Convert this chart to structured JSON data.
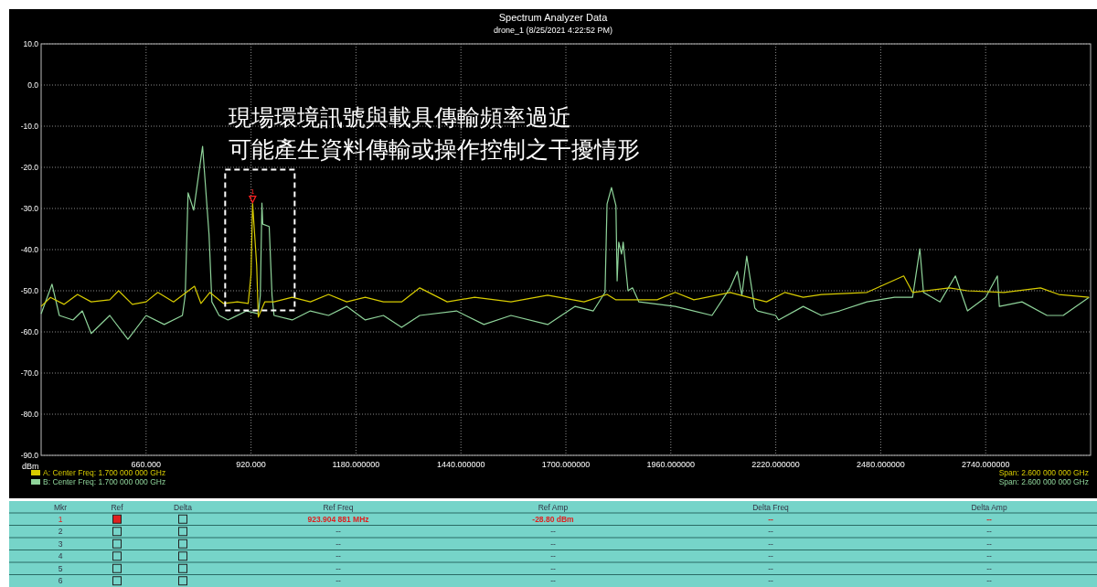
{
  "chart_data": {
    "type": "line",
    "title": "Spectrum Analyzer Data",
    "subtitle": "drone_1 (8/25/2021 4:22:52 PM)",
    "ylabel": "dBm",
    "xlim": [
      400,
      3000
    ],
    "ylim": [
      -90,
      10
    ],
    "xticks": [
      {
        "value": 660,
        "label": "660.000"
      },
      {
        "value": 920,
        "label": "920.000"
      },
      {
        "value": 1180,
        "label": "1180.000000"
      },
      {
        "value": 1440,
        "label": "1440.000000"
      },
      {
        "value": 1700,
        "label": "1700.000000"
      },
      {
        "value": 1960,
        "label": "1960.000000"
      },
      {
        "value": 2220,
        "label": "2220.000000"
      },
      {
        "value": 2480,
        "label": "2480.000000"
      },
      {
        "value": 2740,
        "label": "2740.000000"
      }
    ],
    "yticks": [
      {
        "value": 10,
        "label": "10.0"
      },
      {
        "value": 0,
        "label": "0.0"
      },
      {
        "value": -10,
        "label": "-10.0"
      },
      {
        "value": -20,
        "label": "-20.0"
      },
      {
        "value": -30,
        "label": "-30.0"
      },
      {
        "value": -40,
        "label": "-40.0"
      },
      {
        "value": -50,
        "label": "-50.0"
      },
      {
        "value": -60,
        "label": "-60.0"
      },
      {
        "value": -70,
        "label": "-70.0"
      },
      {
        "value": -80,
        "label": "-80.0"
      },
      {
        "value": -90,
        "label": "-90.0"
      }
    ],
    "grid": true,
    "legend": "bottom left",
    "marker": "none",
    "line_style": "solid",
    "series": [
      {
        "name": "B: Center Freq: 1.700 000 000 GHz",
        "color": "#8fd49a",
        "x": [
          400,
          427,
          445,
          479,
          502,
          524,
          570,
          615,
          660,
          705,
          750,
          757,
          764,
          778,
          800,
          816,
          823,
          841,
          863,
          909,
          938,
          943,
          947,
          949,
          965,
          972,
          977,
          1022,
          1067,
          1112,
          1157,
          1203,
          1248,
          1293,
          1338,
          1429,
          1497,
          1564,
          1655,
          1723,
          1768,
          1797,
          1802,
          1813,
          1824,
          1827,
          1831,
          1838,
          1842,
          1854,
          1865,
          1881,
          1971,
          2062,
          2107,
          2125,
          2136,
          2148,
          2168,
          2175,
          2220,
          2227,
          2288,
          2333,
          2378,
          2446,
          2514,
          2559,
          2577,
          2586,
          2627,
          2665,
          2695,
          2740,
          2769,
          2774,
          2830,
          2892,
          2932,
          2996
        ],
        "values": [
          -55.6,
          -48.4,
          -56,
          -57.1,
          -54.9,
          -60.4,
          -56,
          -61.8,
          -56,
          -58.2,
          -56,
          -51.1,
          -26.2,
          -30.4,
          -14.9,
          -36.4,
          -52.7,
          -56,
          -57.1,
          -54.9,
          -55.6,
          -51.1,
          -28.7,
          -33.8,
          -34.4,
          -51.1,
          -56,
          -57.1,
          -54.9,
          -56,
          -53.8,
          -57.1,
          -56,
          -58.9,
          -56,
          -54.9,
          -58.2,
          -56,
          -58.2,
          -53.8,
          -54.9,
          -50.4,
          -28.9,
          -24.9,
          -29.3,
          -47.6,
          -38.2,
          -41.1,
          -38.2,
          -50,
          -49.3,
          -52.7,
          -53.8,
          -56,
          -49.3,
          -45.3,
          -51.1,
          -41.6,
          -54.2,
          -54.9,
          -56,
          -57.1,
          -53.8,
          -56,
          -54.9,
          -52.7,
          -51.6,
          -51.6,
          -39.8,
          -50.4,
          -52.7,
          -46.4,
          -54.9,
          -51.6,
          -46.4,
          -53.8,
          -52.7,
          -56,
          -56,
          -51.6
        ]
      },
      {
        "name": "A: Center Freq: 1.700 000 000 GHz",
        "color": "#d8cc00",
        "x": [
          400,
          423,
          457,
          490,
          524,
          570,
          592,
          626,
          660,
          689,
          728,
          780,
          796,
          818,
          852,
          886,
          913,
          920,
          923.9,
          934,
          938,
          954,
          977,
          1022,
          1067,
          1112,
          1157,
          1203,
          1248,
          1293,
          1338,
          1406,
          1474,
          1564,
          1655,
          1745,
          1802,
          1824,
          1881,
          1926,
          1971,
          2017,
          2107,
          2152,
          2197,
          2243,
          2288,
          2333,
          2446,
          2537,
          2559,
          2650,
          2695,
          2785,
          2876,
          2921,
          2996
        ],
        "values": [
          -53.8,
          -51.6,
          -53.3,
          -50.9,
          -52.7,
          -52.2,
          -50,
          -53.3,
          -52.7,
          -50.4,
          -52.7,
          -48.9,
          -53.1,
          -50.4,
          -53.1,
          -52.7,
          -53.1,
          -46,
          -28.8,
          -43.8,
          -56.4,
          -52.7,
          -52.7,
          -51.6,
          -52.7,
          -50.9,
          -52.7,
          -51.6,
          -52.7,
          -52.7,
          -49.3,
          -52.7,
          -51.6,
          -52.7,
          -51.1,
          -52.7,
          -50.9,
          -52.2,
          -52.2,
          -52.2,
          -50.4,
          -52.2,
          -50.4,
          -51.6,
          -52.7,
          -50.4,
          -51.6,
          -50.9,
          -50.4,
          -46.4,
          -50.4,
          -49.3,
          -50,
          -50.4,
          -49.3,
          -50.9,
          -51.6
        ]
      }
    ],
    "annotations": [
      "現場環境訊號與載具傳輸頻率過近",
      "可能產生資料傳輸或操作控制之干擾情形",
      {
        "text": "1",
        "x": 923.904881,
        "y": -28.8
      },
      "Span: 2.600 000 000 GHz",
      "Span: 2.600 000 000 GHz",
      "Mkr",
      "Ref",
      "Delta",
      "Ref Freq",
      "Ref Amp",
      "Delta Freq",
      "Delta Amp",
      "1",
      "923.904 881 MHz",
      "-28.80 dBm",
      "--",
      "--",
      "2",
      "--",
      "--",
      "--",
      "--",
      "3",
      "--",
      "--",
      "--",
      "--",
      "4",
      "--",
      "--",
      "--",
      "--",
      "5",
      "--",
      "--",
      "--",
      "--",
      "6",
      "--",
      "--",
      "--",
      "--"
    ]
  }
}
